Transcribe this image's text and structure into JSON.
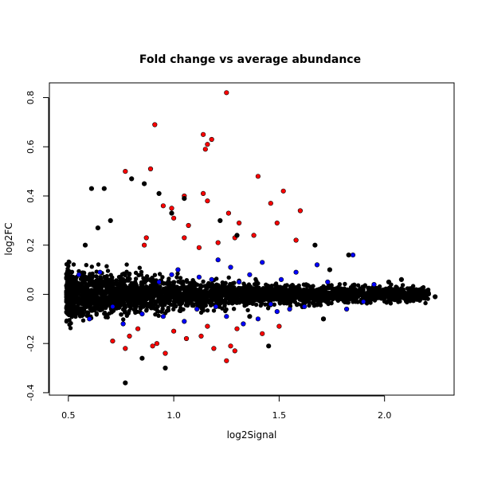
{
  "chart_data": {
    "type": "scatter",
    "title": "Fold change vs average abundance",
    "xlabel": "log2Signal",
    "ylabel": "log2FC",
    "xlim": [
      0.41,
      2.33
    ],
    "ylim": [
      -0.41,
      0.86
    ],
    "x_ticks": [
      0.5,
      1.0,
      1.5,
      2.0
    ],
    "x_tick_labels": [
      "0.5",
      "1.0",
      "1.5",
      "2.0"
    ],
    "y_ticks": [
      -0.4,
      -0.2,
      0.0,
      0.2,
      0.4,
      0.6,
      0.8
    ],
    "y_tick_labels": [
      "-0.4",
      "-0.2",
      "0.0",
      "0.2",
      "0.4",
      "0.6",
      "0.8"
    ],
    "grid": false,
    "legend": "none",
    "colors": {
      "all_genes": "#000000",
      "significant": "#0000ff",
      "high_fold_change": "#ff0000"
    },
    "series": [
      {
        "color": "#ff0000",
        "points": [
          [
            1.25,
            0.82
          ],
          [
            0.91,
            0.69
          ],
          [
            1.14,
            0.65
          ],
          [
            1.18,
            0.63
          ],
          [
            1.16,
            0.61
          ],
          [
            1.15,
            0.59
          ],
          [
            0.89,
            0.51
          ],
          [
            0.77,
            0.5
          ],
          [
            1.4,
            0.48
          ],
          [
            1.52,
            0.42
          ],
          [
            1.05,
            0.4
          ],
          [
            1.14,
            0.41
          ],
          [
            1.16,
            0.38
          ],
          [
            1.46,
            0.37
          ],
          [
            0.95,
            0.36
          ],
          [
            0.99,
            0.35
          ],
          [
            1.26,
            0.33
          ],
          [
            1.6,
            0.34
          ],
          [
            1.0,
            0.31
          ],
          [
            1.49,
            0.29
          ],
          [
            1.07,
            0.28
          ],
          [
            1.31,
            0.29
          ],
          [
            0.87,
            0.23
          ],
          [
            1.05,
            0.23
          ],
          [
            1.21,
            0.21
          ],
          [
            1.29,
            0.23
          ],
          [
            1.38,
            0.24
          ],
          [
            1.58,
            0.22
          ],
          [
            0.86,
            0.2
          ],
          [
            1.12,
            0.19
          ],
          [
            0.83,
            -0.14
          ],
          [
            1.0,
            -0.15
          ],
          [
            1.16,
            -0.13
          ],
          [
            1.3,
            -0.14
          ],
          [
            1.5,
            -0.13
          ],
          [
            0.79,
            -0.17
          ],
          [
            1.06,
            -0.18
          ],
          [
            0.77,
            -0.22
          ],
          [
            0.9,
            -0.21
          ],
          [
            1.19,
            -0.22
          ],
          [
            1.27,
            -0.21
          ],
          [
            0.71,
            -0.19
          ],
          [
            0.96,
            -0.24
          ],
          [
            1.29,
            -0.23
          ],
          [
            1.25,
            -0.27
          ],
          [
            0.92,
            -0.2
          ],
          [
            1.13,
            -0.17
          ],
          [
            1.42,
            -0.16
          ]
        ]
      },
      {
        "color": "#0000ff",
        "points": [
          [
            1.85,
            0.16
          ],
          [
            1.21,
            0.14
          ],
          [
            1.02,
            0.1
          ],
          [
            1.68,
            0.12
          ],
          [
            1.36,
            0.08
          ],
          [
            1.12,
            0.07
          ],
          [
            1.51,
            0.06
          ],
          [
            1.73,
            0.05
          ],
          [
            0.93,
            0.05
          ],
          [
            1.27,
            0.11
          ],
          [
            0.65,
            0.09
          ],
          [
            1.42,
            0.13
          ],
          [
            1.95,
            0.04
          ],
          [
            1.58,
            0.09
          ],
          [
            0.55,
            0.08
          ],
          [
            1.18,
            0.06
          ],
          [
            0.99,
            0.08
          ],
          [
            1.31,
            0.05
          ],
          [
            0.71,
            -0.05
          ],
          [
            1.11,
            -0.06
          ],
          [
            1.49,
            -0.07
          ],
          [
            1.82,
            -0.06
          ],
          [
            0.85,
            -0.08
          ],
          [
            1.25,
            -0.09
          ],
          [
            1.62,
            -0.05
          ],
          [
            0.6,
            -0.1
          ],
          [
            1.4,
            -0.1
          ],
          [
            1.05,
            -0.11
          ],
          [
            1.71,
            -0.1
          ],
          [
            0.95,
            -0.09
          ],
          [
            1.33,
            -0.12
          ],
          [
            1.55,
            -0.06
          ],
          [
            1.9,
            -0.03
          ],
          [
            0.76,
            -0.12
          ],
          [
            1.2,
            -0.05
          ],
          [
            1.46,
            -0.04
          ]
        ]
      },
      {
        "color": "#000000",
        "points": [
          [
            0.77,
            -0.36
          ],
          [
            0.67,
            0.43
          ],
          [
            0.61,
            0.43
          ],
          [
            0.8,
            0.47
          ],
          [
            0.86,
            0.45
          ],
          [
            0.93,
            0.41
          ],
          [
            1.05,
            0.39
          ],
          [
            0.99,
            0.33
          ],
          [
            1.22,
            0.3
          ],
          [
            0.7,
            0.3
          ],
          [
            0.64,
            0.27
          ],
          [
            1.3,
            0.24
          ],
          [
            0.58,
            0.2
          ],
          [
            1.83,
            0.16
          ],
          [
            1.74,
            0.1
          ],
          [
            2.08,
            0.06
          ],
          [
            2.02,
            0.05
          ],
          [
            0.85,
            -0.26
          ],
          [
            0.96,
            -0.3
          ],
          [
            1.45,
            -0.21
          ],
          [
            1.71,
            -0.1
          ],
          [
            1.36,
            -0.09
          ],
          [
            0.51,
            0.07
          ],
          [
            0.53,
            -0.08
          ],
          [
            2.24,
            -0.01
          ],
          [
            2.1,
            -0.02
          ],
          [
            1.67,
            0.2
          ]
        ]
      }
    ]
  }
}
